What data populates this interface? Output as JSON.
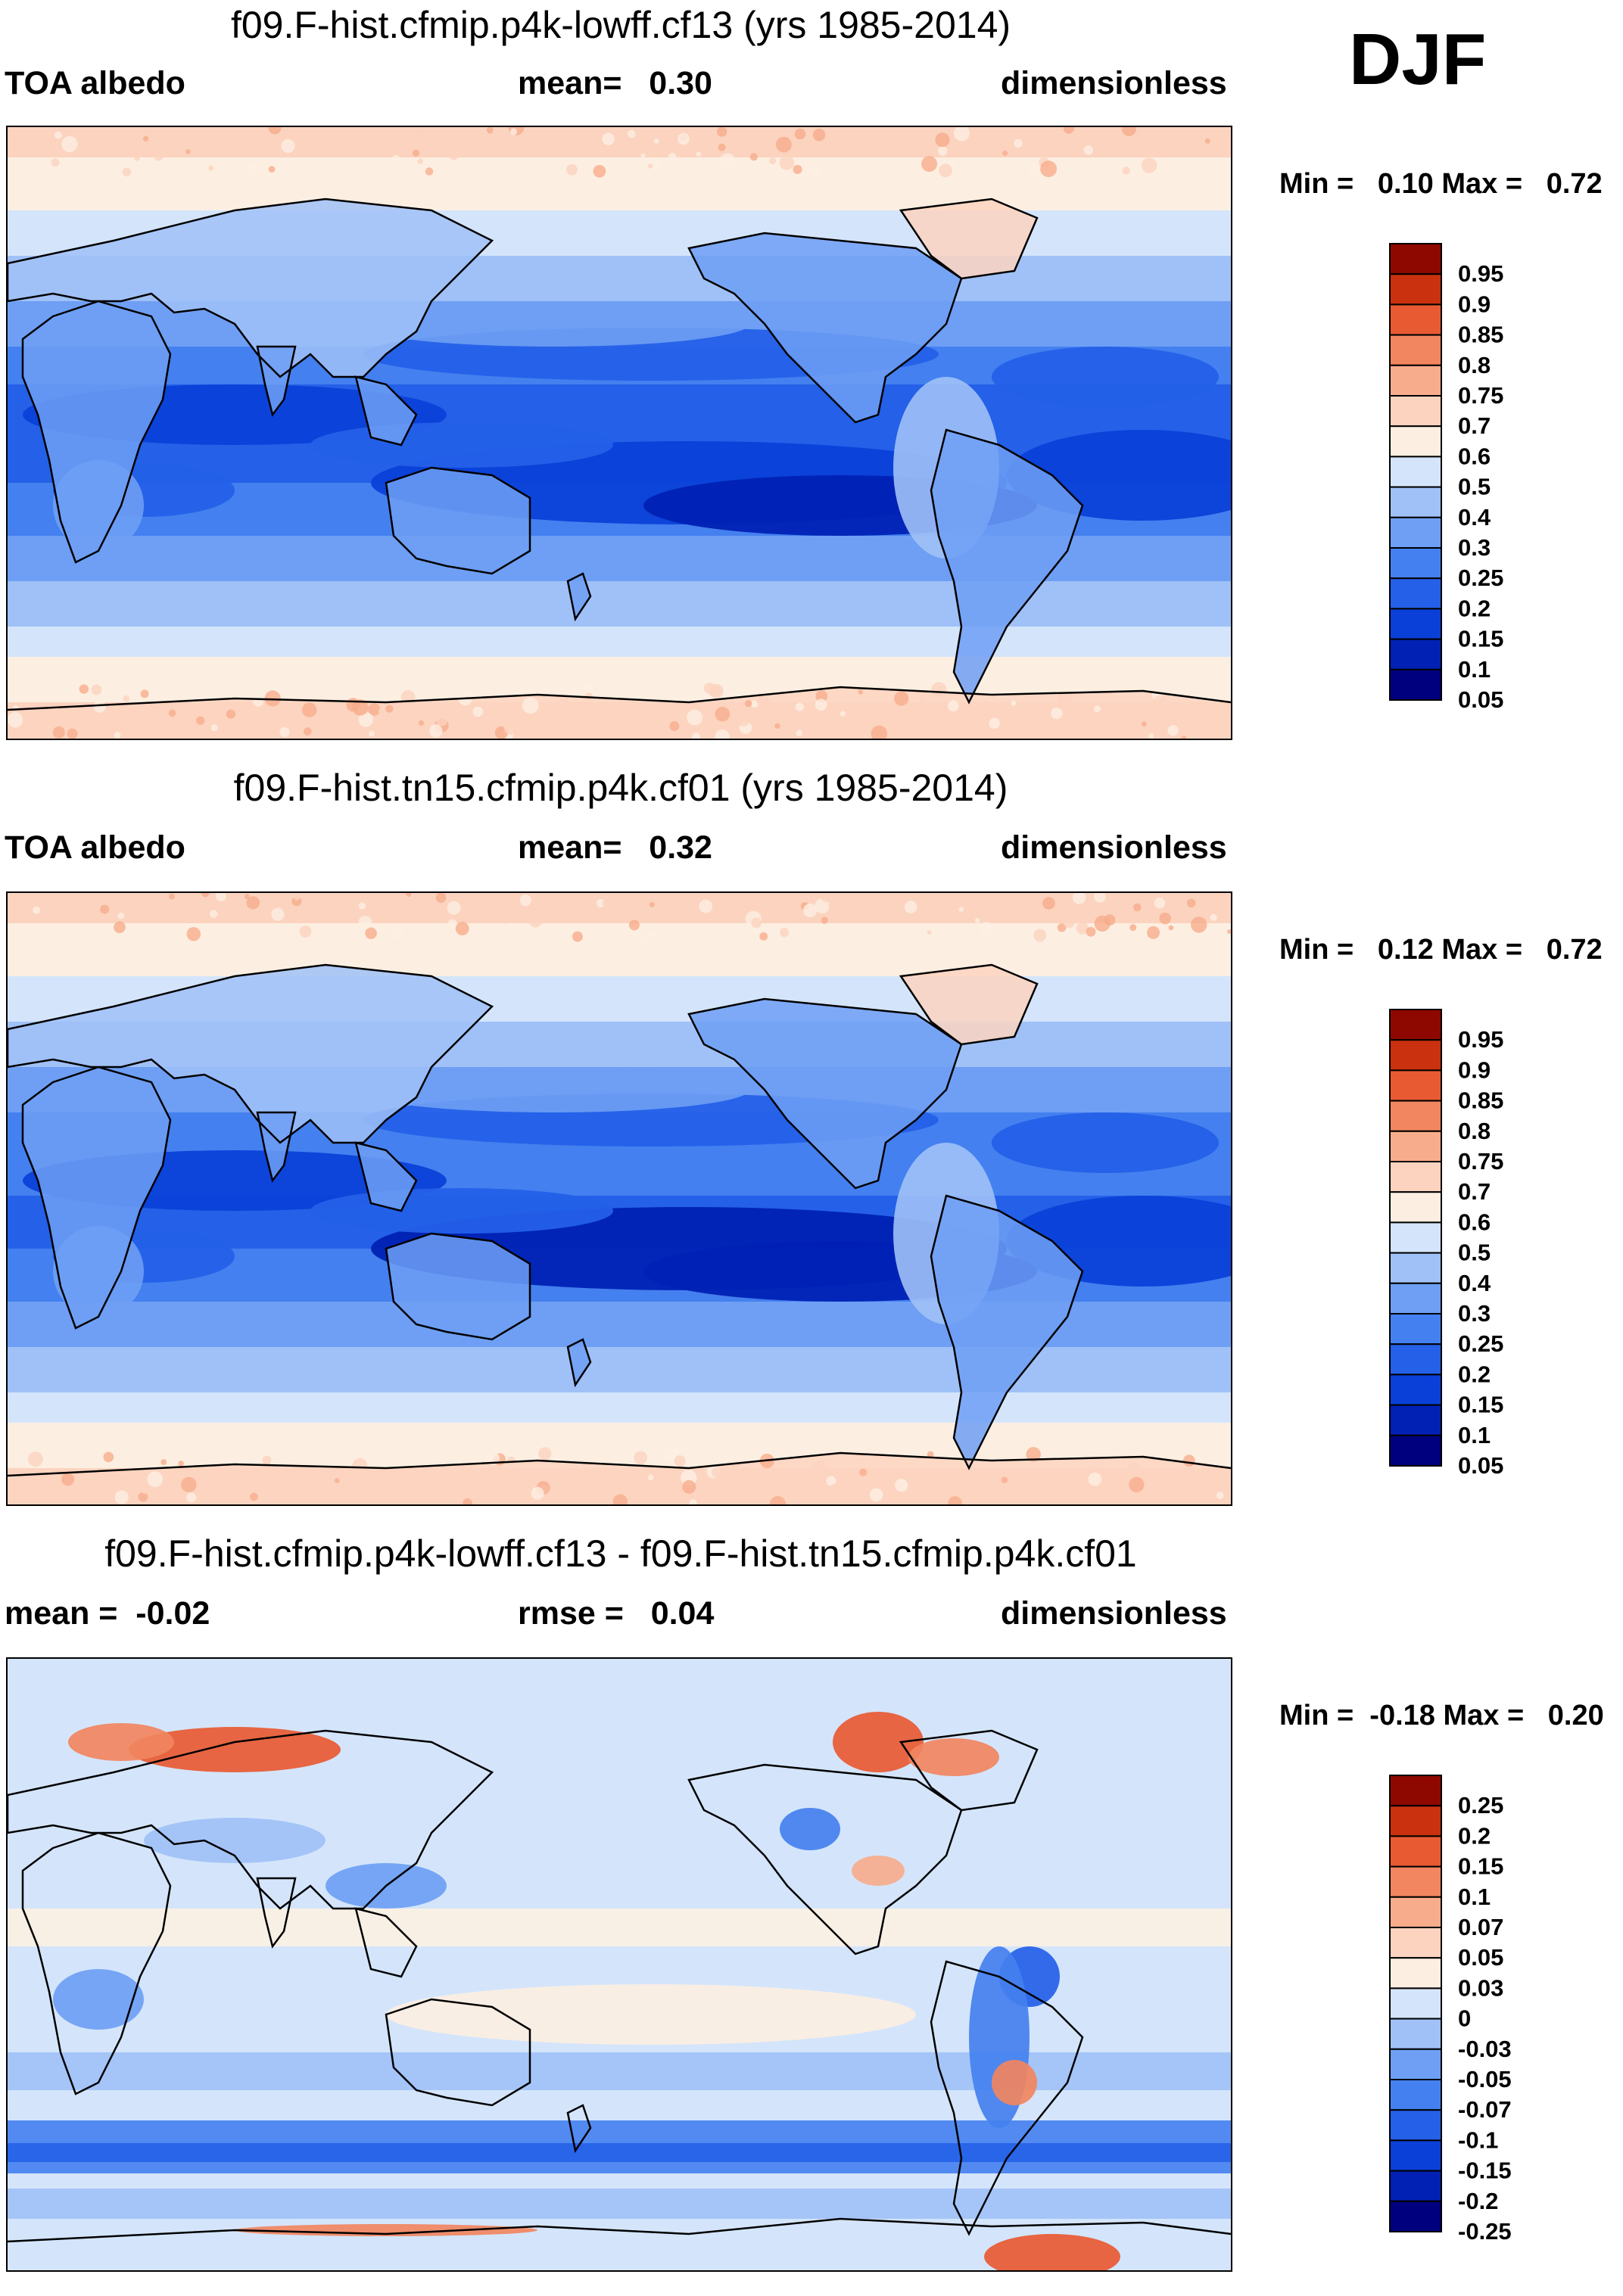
{
  "season": "DJF",
  "colors": {
    "abs_palette": [
      "#00007f",
      "#0021b4",
      "#0b40d8",
      "#2460e8",
      "#4480ef",
      "#6e9ff4",
      "#a0c1f7",
      "#d4e5fb",
      "#fcefe2",
      "#fbd3bf",
      "#f7ad8c",
      "#f18660",
      "#e85a32",
      "#c9310f",
      "#8e0800"
    ],
    "diff_palette": [
      "#00007f",
      "#0021b4",
      "#0b40d8",
      "#2460e8",
      "#4480ef",
      "#6e9ff4",
      "#a0c1f7",
      "#d4e5fb",
      "#fcefe2",
      "#fbd3bf",
      "#f7ad8c",
      "#f18660",
      "#e85a32",
      "#c9310f",
      "#8e0800"
    ],
    "coast": "#000000"
  },
  "panels": [
    {
      "title": "f09.F-hist.cfmip.p4k-lowff.cf13 (yrs 1985-2014)",
      "left_label": "TOA albedo",
      "center_label": "mean=   0.30",
      "right_label": "dimensionless",
      "minmax": "Min =   0.10 Max =   0.72",
      "colorbar_labels": [
        "0.95",
        "0.9",
        "0.85",
        "0.8",
        "0.75",
        "0.7",
        "0.6",
        "0.5",
        "0.4",
        "0.3",
        "0.25",
        "0.2",
        "0.15",
        "0.1",
        "0.05"
      ]
    },
    {
      "title": "f09.F-hist.tn15.cfmip.p4k.cf01 (yrs 1985-2014)",
      "left_label": "TOA albedo",
      "center_label": "mean=   0.32",
      "right_label": "dimensionless",
      "minmax": "Min =   0.12 Max =   0.72",
      "colorbar_labels": [
        "0.95",
        "0.9",
        "0.85",
        "0.8",
        "0.75",
        "0.7",
        "0.6",
        "0.5",
        "0.4",
        "0.3",
        "0.25",
        "0.2",
        "0.15",
        "0.1",
        "0.05"
      ]
    },
    {
      "title": "f09.F-hist.cfmip.p4k-lowff.cf13 - f09.F-hist.tn15.cfmip.p4k.cf01",
      "left_label": "mean =  -0.02",
      "center_label": "rmse =   0.04",
      "right_label": "dimensionless",
      "minmax": "Min =  -0.18 Max =   0.20",
      "colorbar_labels": [
        "0.25",
        "0.2",
        "0.15",
        "0.1",
        "0.07",
        "0.05",
        "0.03",
        "0",
        "-0.03",
        "-0.05",
        "-0.07",
        "-0.1",
        "-0.15",
        "-0.2",
        "-0.25"
      ]
    }
  ],
  "chart_data": [
    {
      "type": "heatmap",
      "title": "f09.F-hist.cfmip.p4k-lowff.cf13 (yrs 1985-2014)",
      "variable": "TOA albedo",
      "units": "dimensionless",
      "mean": 0.3,
      "min": 0.1,
      "max": 0.72,
      "contour_levels": [
        0.05,
        0.1,
        0.15,
        0.2,
        0.25,
        0.3,
        0.4,
        0.5,
        0.6,
        0.7,
        0.75,
        0.8,
        0.85,
        0.9,
        0.95
      ],
      "projection": "global cylindrical equidistant, Pacific-centered"
    },
    {
      "type": "heatmap",
      "title": "f09.F-hist.tn15.cfmip.p4k.cf01 (yrs 1985-2014)",
      "variable": "TOA albedo",
      "units": "dimensionless",
      "mean": 0.32,
      "min": 0.12,
      "max": 0.72,
      "contour_levels": [
        0.05,
        0.1,
        0.15,
        0.2,
        0.25,
        0.3,
        0.4,
        0.5,
        0.6,
        0.7,
        0.75,
        0.8,
        0.85,
        0.9,
        0.95
      ],
      "projection": "global cylindrical equidistant, Pacific-centered"
    },
    {
      "type": "heatmap",
      "title": "f09.F-hist.cfmip.p4k-lowff.cf13 - f09.F-hist.tn15.cfmip.p4k.cf01",
      "units": "dimensionless",
      "mean": -0.02,
      "rmse": 0.04,
      "min": -0.18,
      "max": 0.2,
      "contour_levels": [
        -0.25,
        -0.2,
        -0.15,
        -0.1,
        -0.07,
        -0.05,
        -0.03,
        0,
        0.03,
        0.05,
        0.07,
        0.1,
        0.15,
        0.2,
        0.25
      ],
      "projection": "global cylindrical equidistant, Pacific-centered"
    }
  ]
}
